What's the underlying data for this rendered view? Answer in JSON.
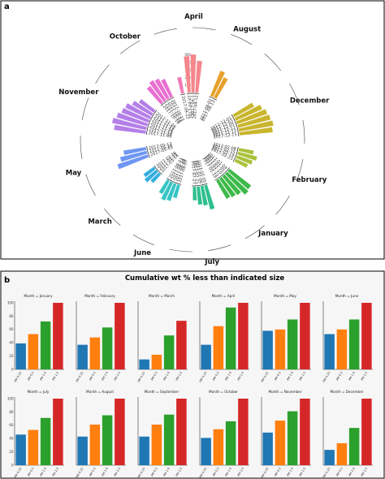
{
  "panel_a": {
    "label": "a"
  },
  "panel_b": {
    "label": "b",
    "title": "Cumulative wt % less than indicated size"
  },
  "chart_data": [
    {
      "type": "bar",
      "subtype": "circular-bar",
      "panel": "a",
      "radial_ticks": [
        100,
        200,
        300,
        400,
        500
      ],
      "groups": [
        {
          "month": "April",
          "color": "#F4868C",
          "labels": [
            "2017-04-07",
            "2017-04-1",
            "2017-04-12"
          ],
          "values": [
            480,
            500,
            420
          ]
        },
        {
          "month": "August",
          "color": "#E6A12B",
          "labels": [
            "2017-08-02",
            "2017-08-13"
          ],
          "values": [
            360,
            300
          ]
        },
        {
          "month": "December",
          "color": "#C9B52E",
          "labels": [
            "2017-12-01",
            "2017-12-03",
            "2017-12-05",
            "2017-12-12",
            "2017-12-13",
            "2017-12-15"
          ],
          "values": [
            300,
            380,
            420,
            440,
            460,
            440
          ]
        },
        {
          "month": "February",
          "color": "#A9C23C",
          "labels": [
            "2017-02-08",
            "2017-02-15",
            "2017-02-19",
            "2017-02-23"
          ],
          "values": [
            200,
            260,
            220,
            180
          ]
        },
        {
          "month": "January",
          "color": "#3DB94A",
          "labels": [
            "2017-01-04",
            "2017-01-05",
            "2017-01-10",
            "2017-01-11",
            "2017-01-18"
          ],
          "values": [
            360,
            380,
            320,
            300,
            280
          ]
        },
        {
          "month": "July",
          "color": "#2FBF8E",
          "labels": [
            "2017-07-05",
            "2017-07-06",
            "2017-07-21",
            "2017-07-27"
          ],
          "values": [
            330,
            260,
            240,
            180
          ]
        },
        {
          "month": "June",
          "color": "#35C4C4",
          "labels": [
            "2017-06-07",
            "2017-06-08",
            "2017-06-14",
            "2017-06-21"
          ],
          "values": [
            180,
            240,
            260,
            200
          ]
        },
        {
          "month": "March",
          "color": "#35AEE0",
          "labels": [
            "2017-03-14",
            "2017-03-22",
            "2017-03-26"
          ],
          "values": [
            150,
            200,
            170
          ]
        },
        {
          "month": "May",
          "color": "#6F96F2",
          "labels": [
            "2017-05-03",
            "2017-05-10",
            "2017-05-17"
          ],
          "values": [
            420,
            360,
            300
          ]
        },
        {
          "month": "November",
          "color": "#B47FE8",
          "labels": [
            "2017-11-06",
            "2017-11-10",
            "2017-11-13",
            "2017-11-16",
            "2017-11-17",
            "2017-11-22",
            "2017-11-24"
          ],
          "values": [
            420,
            460,
            420,
            380,
            360,
            300,
            240
          ]
        },
        {
          "month": "October",
          "color": "#E86FD0",
          "labels": [
            "2017-10-18",
            "2017-10-20",
            "2017-10-23",
            "2017-10-27"
          ],
          "values": [
            280,
            320,
            300,
            260
          ]
        },
        {
          "month": "",
          "color": "#F07BB5",
          "labels": [
            "2017-09-22"
          ],
          "values": [
            220
          ]
        }
      ]
    },
    {
      "type": "bar",
      "panel": "b",
      "title": "Cumulative wt % less than indicated size",
      "categories": [
        "PM 0.25",
        "PM 0.5",
        "PM 1.0",
        "PM 2.5"
      ],
      "colors": [
        "#1F77B4",
        "#FF7F0E",
        "#2CA02C",
        "#D62728"
      ],
      "ylim": [
        0,
        100
      ],
      "yticks": [
        0,
        20,
        40,
        60,
        80,
        100
      ],
      "facets": [
        {
          "title": "Month = January",
          "values": [
            39,
            53,
            72,
            100
          ]
        },
        {
          "title": "Month = February",
          "values": [
            37,
            48,
            63,
            100
          ]
        },
        {
          "title": "Month = March",
          "values": [
            15,
            22,
            51,
            73
          ]
        },
        {
          "title": "Month = April",
          "values": [
            37,
            65,
            93,
            100
          ]
        },
        {
          "title": "Month = May",
          "values": [
            58,
            60,
            75,
            100
          ]
        },
        {
          "title": "Month = June",
          "values": [
            53,
            60,
            75,
            100
          ]
        },
        {
          "title": "Month = July",
          "values": [
            46,
            53,
            71,
            100
          ]
        },
        {
          "title": "Month = August",
          "values": [
            43,
            61,
            75,
            100
          ]
        },
        {
          "title": "Month = September",
          "values": [
            43,
            61,
            76,
            100
          ]
        },
        {
          "title": "Month = October",
          "values": [
            41,
            54,
            66,
            100
          ]
        },
        {
          "title": "Month = November",
          "values": [
            49,
            67,
            81,
            100
          ]
        },
        {
          "title": "Month = December",
          "values": [
            23,
            33,
            56,
            100
          ]
        }
      ]
    }
  ]
}
